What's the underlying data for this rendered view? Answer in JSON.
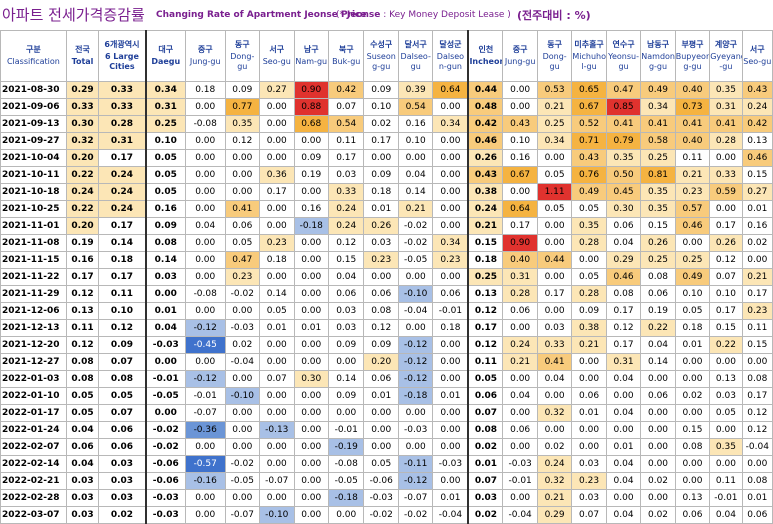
{
  "title": {
    "korean": "아파트 전세가격증감률",
    "english": "Changing Rate of Apartment Jeonse Price",
    "note_prefix": "(* ",
    "note_key": "Jeonse",
    "note_text": " : Key Money Deposit Lease )",
    "unit": "(전주대비 : %)"
  },
  "header": {
    "classification_ko": "구분",
    "classification_en": "Classification",
    "columns": [
      {
        "ko": "전국",
        "en": "Total"
      },
      {
        "ko": "6개광역시",
        "en": "6 Large Cities"
      },
      {
        "ko": "대구",
        "en": "Daegu"
      },
      {
        "ko": "중구",
        "en": "Jung-gu"
      },
      {
        "ko": "동구",
        "en": "Dong-gu"
      },
      {
        "ko": "서구",
        "en": "Seo-gu"
      },
      {
        "ko": "남구",
        "en": "Nam-gu"
      },
      {
        "ko": "북구",
        "en": "Buk-gu"
      },
      {
        "ko": "수성구",
        "en": "Suseon g-gu"
      },
      {
        "ko": "달서구",
        "en": "Dalseo-gu"
      },
      {
        "ko": "달성군",
        "en": "Dalseo n-gun"
      },
      {
        "ko": "인천",
        "en": "Incheon"
      },
      {
        "ko": "중구",
        "en": "Jung-gu"
      },
      {
        "ko": "동구",
        "en": "Dong-gu"
      },
      {
        "ko": "미추홀구",
        "en": "Michuho l-gu"
      },
      {
        "ko": "연수구",
        "en": "Yeonsu-gu"
      },
      {
        "ko": "남동구",
        "en": "Namdon g-gu"
      },
      {
        "ko": "부평구",
        "en": "Bupyeon g-gu"
      },
      {
        "ko": "계양구",
        "en": "Gyeyang -gu"
      },
      {
        "ko": "서구",
        "en": "Seo-gu"
      }
    ]
  },
  "colors": {
    "strong_orange": "#f5b341",
    "orange": "#f8cb7c",
    "light_yellow": "#fce6b6",
    "red": "#e0322e",
    "pale_blue": "#dbe5f4",
    "mid_blue": "#a8c0e6",
    "blue": "#6b95d6",
    "strong_blue": "#3f72cc"
  },
  "rows": [
    {
      "date": "2021-08-30",
      "values": [
        "0.29",
        "0.33",
        "0.34",
        "0.18",
        "0.09",
        "0.27",
        "0.90",
        "0.42",
        "0.09",
        "0.39",
        "0.64",
        "0.44",
        "0.00",
        "0.53",
        "0.65",
        "0.47",
        "0.49",
        "0.40",
        "0.35",
        "0.43"
      ]
    },
    {
      "date": "2021-09-06",
      "values": [
        "0.33",
        "0.33",
        "0.31",
        "0.00",
        "0.77",
        "0.00",
        "0.88",
        "0.07",
        "0.10",
        "0.54",
        "0.00",
        "0.48",
        "0.00",
        "0.21",
        "0.67",
        "0.85",
        "0.34",
        "0.73",
        "0.31",
        "0.24"
      ]
    },
    {
      "date": "2021-09-13",
      "values": [
        "0.30",
        "0.28",
        "0.25",
        "-0.08",
        "0.35",
        "0.00",
        "0.68",
        "0.54",
        "0.02",
        "0.16",
        "0.34",
        "0.42",
        "0.43",
        "0.25",
        "0.52",
        "0.41",
        "0.41",
        "0.41",
        "0.41",
        "0.42"
      ]
    },
    {
      "date": "2021-09-27",
      "values": [
        "0.32",
        "0.31",
        "0.10",
        "0.00",
        "0.12",
        "0.00",
        "0.00",
        "0.11",
        "0.17",
        "0.10",
        "0.00",
        "0.46",
        "0.10",
        "0.34",
        "0.71",
        "0.79",
        "0.58",
        "0.40",
        "0.28",
        "0.13"
      ]
    },
    {
      "date": "2021-10-04",
      "values": [
        "0.20",
        "0.17",
        "0.05",
        "0.00",
        "0.00",
        "0.00",
        "0.09",
        "0.17",
        "0.00",
        "0.00",
        "0.00",
        "0.26",
        "0.16",
        "0.00",
        "0.43",
        "0.35",
        "0.25",
        "0.11",
        "0.00",
        "0.46"
      ]
    },
    {
      "date": "2021-10-11",
      "values": [
        "0.22",
        "0.24",
        "0.05",
        "0.00",
        "0.00",
        "0.36",
        "0.19",
        "0.03",
        "0.09",
        "0.04",
        "0.00",
        "0.43",
        "0.67",
        "0.05",
        "0.76",
        "0.50",
        "0.81",
        "0.21",
        "0.33",
        "0.15"
      ]
    },
    {
      "date": "2021-10-18",
      "values": [
        "0.24",
        "0.24",
        "0.05",
        "0.00",
        "0.00",
        "0.17",
        "0.00",
        "0.33",
        "0.18",
        "0.14",
        "0.00",
        "0.38",
        "0.00",
        "1.11",
        "0.49",
        "0.45",
        "0.35",
        "0.23",
        "0.59",
        "0.27"
      ]
    },
    {
      "date": "2021-10-25",
      "values": [
        "0.22",
        "0.24",
        "0.16",
        "0.00",
        "0.41",
        "0.00",
        "0.16",
        "0.24",
        "0.01",
        "0.21",
        "0.00",
        "0.24",
        "0.64",
        "0.05",
        "0.05",
        "0.30",
        "0.35",
        "0.57",
        "0.00",
        "0.01"
      ]
    },
    {
      "date": "2021-11-01",
      "values": [
        "0.20",
        "0.17",
        "0.09",
        "0.04",
        "0.06",
        "0.00",
        "-0.18",
        "0.24",
        "0.26",
        "-0.02",
        "0.00",
        "0.21",
        "0.17",
        "0.00",
        "0.35",
        "0.06",
        "0.15",
        "0.46",
        "0.17",
        "0.16"
      ]
    },
    {
      "date": "2021-11-08",
      "values": [
        "0.19",
        "0.14",
        "0.08",
        "0.00",
        "0.05",
        "0.23",
        "0.00",
        "0.12",
        "0.03",
        "-0.02",
        "0.34",
        "0.15",
        "0.90",
        "0.00",
        "0.28",
        "0.04",
        "0.26",
        "0.00",
        "0.26",
        "0.02"
      ]
    },
    {
      "date": "2021-11-15",
      "values": [
        "0.16",
        "0.18",
        "0.14",
        "0.00",
        "0.47",
        "0.18",
        "0.00",
        "0.15",
        "0.23",
        "-0.05",
        "0.23",
        "0.18",
        "0.40",
        "0.44",
        "0.00",
        "0.29",
        "0.25",
        "0.25",
        "0.12",
        "0.00"
      ]
    },
    {
      "date": "2021-11-22",
      "values": [
        "0.17",
        "0.17",
        "0.03",
        "0.00",
        "0.23",
        "0.00",
        "0.00",
        "0.04",
        "0.00",
        "0.00",
        "0.00",
        "0.25",
        "0.31",
        "0.00",
        "0.05",
        "0.46",
        "0.08",
        "0.49",
        "0.07",
        "0.21"
      ]
    },
    {
      "date": "2021-11-29",
      "values": [
        "0.12",
        "0.11",
        "0.00",
        "-0.08",
        "-0.02",
        "0.14",
        "0.00",
        "0.06",
        "0.06",
        "-0.10",
        "0.06",
        "0.13",
        "0.28",
        "0.17",
        "0.28",
        "0.08",
        "0.06",
        "0.10",
        "0.10",
        "0.17"
      ]
    },
    {
      "date": "2021-12-06",
      "values": [
        "0.13",
        "0.10",
        "0.01",
        "0.00",
        "0.00",
        "0.05",
        "0.00",
        "0.03",
        "0.08",
        "-0.04",
        "-0.01",
        "0.12",
        "0.06",
        "0.00",
        "0.09",
        "0.17",
        "0.19",
        "0.05",
        "0.17",
        "0.23"
      ]
    },
    {
      "date": "2021-12-13",
      "values": [
        "0.11",
        "0.12",
        "0.04",
        "-0.12",
        "-0.03",
        "0.01",
        "0.01",
        "0.03",
        "0.12",
        "0.00",
        "0.18",
        "0.17",
        "0.00",
        "0.03",
        "0.38",
        "0.12",
        "0.22",
        "0.18",
        "0.15",
        "0.11"
      ]
    },
    {
      "date": "2021-12-20",
      "values": [
        "0.12",
        "0.09",
        "-0.03",
        "-0.45",
        "0.02",
        "0.00",
        "0.00",
        "0.09",
        "0.09",
        "-0.12",
        "0.00",
        "0.12",
        "0.24",
        "0.33",
        "0.21",
        "0.17",
        "0.04",
        "0.01",
        "0.22",
        "0.15"
      ]
    },
    {
      "date": "2021-12-27",
      "values": [
        "0.08",
        "0.07",
        "0.00",
        "0.00",
        "-0.04",
        "0.00",
        "0.00",
        "0.00",
        "0.20",
        "-0.12",
        "0.00",
        "0.11",
        "0.21",
        "0.41",
        "0.00",
        "0.31",
        "0.14",
        "0.00",
        "0.00",
        "0.00"
      ]
    },
    {
      "date": "2022-01-03",
      "values": [
        "0.08",
        "0.08",
        "-0.01",
        "-0.12",
        "0.00",
        "0.07",
        "0.30",
        "0.14",
        "0.06",
        "-0.12",
        "0.00",
        "0.05",
        "0.00",
        "0.04",
        "0.00",
        "0.04",
        "0.00",
        "0.00",
        "0.13",
        "0.08"
      ]
    },
    {
      "date": "2022-01-10",
      "values": [
        "0.05",
        "0.05",
        "-0.05",
        "-0.01",
        "-0.10",
        "0.00",
        "0.00",
        "0.09",
        "0.01",
        "-0.18",
        "0.01",
        "0.06",
        "0.04",
        "0.00",
        "0.06",
        "0.00",
        "0.06",
        "0.02",
        "0.03",
        "0.17"
      ]
    },
    {
      "date": "2022-01-17",
      "values": [
        "0.05",
        "0.07",
        "0.00",
        "-0.07",
        "0.00",
        "0.00",
        "0.00",
        "0.00",
        "0.00",
        "0.00",
        "0.00",
        "0.07",
        "0.00",
        "0.32",
        "0.01",
        "0.04",
        "0.00",
        "0.00",
        "0.05",
        "0.12"
      ]
    },
    {
      "date": "2022-01-24",
      "values": [
        "0.04",
        "0.06",
        "-0.02",
        "-0.36",
        "0.00",
        "-0.13",
        "0.00",
        "-0.01",
        "0.00",
        "-0.03",
        "0.00",
        "0.08",
        "0.06",
        "0.00",
        "0.00",
        "0.00",
        "0.00",
        "0.15",
        "0.00",
        "0.12"
      ]
    },
    {
      "date": "2022-02-07",
      "values": [
        "0.06",
        "0.06",
        "-0.02",
        "0.00",
        "0.00",
        "0.00",
        "0.00",
        "-0.19",
        "0.00",
        "0.00",
        "0.00",
        "0.02",
        "0.00",
        "0.02",
        "0.00",
        "0.01",
        "0.00",
        "0.08",
        "0.35",
        "-0.04"
      ]
    },
    {
      "date": "2022-02-14",
      "values": [
        "0.04",
        "0.03",
        "-0.06",
        "-0.57",
        "-0.02",
        "0.00",
        "0.00",
        "-0.08",
        "0.05",
        "-0.11",
        "-0.03",
        "0.01",
        "-0.03",
        "0.24",
        "0.03",
        "0.04",
        "0.00",
        "0.00",
        "0.00",
        "0.00"
      ]
    },
    {
      "date": "2022-02-21",
      "values": [
        "0.03",
        "0.03",
        "-0.06",
        "-0.16",
        "-0.05",
        "-0.07",
        "0.00",
        "-0.05",
        "-0.06",
        "-0.12",
        "0.00",
        "0.07",
        "-0.01",
        "0.32",
        "0.23",
        "0.04",
        "0.02",
        "0.00",
        "0.11",
        "0.08"
      ]
    },
    {
      "date": "2022-02-28",
      "values": [
        "0.03",
        "0.03",
        "-0.03",
        "0.00",
        "0.00",
        "0.00",
        "0.00",
        "-0.18",
        "-0.03",
        "-0.07",
        "0.01",
        "0.03",
        "0.00",
        "0.21",
        "0.03",
        "0.00",
        "0.00",
        "0.13",
        "-0.01",
        "0.01"
      ]
    },
    {
      "date": "2022-03-07",
      "values": [
        "0.03",
        "0.02",
        "-0.03",
        "0.00",
        "-0.07",
        "-0.10",
        "0.00",
        "0.00",
        "-0.02",
        "-0.02",
        "-0.04",
        "0.02",
        "-0.04",
        "0.29",
        "0.07",
        "0.04",
        "0.02",
        "0.06",
        "0.04",
        "0.06"
      ]
    }
  ]
}
